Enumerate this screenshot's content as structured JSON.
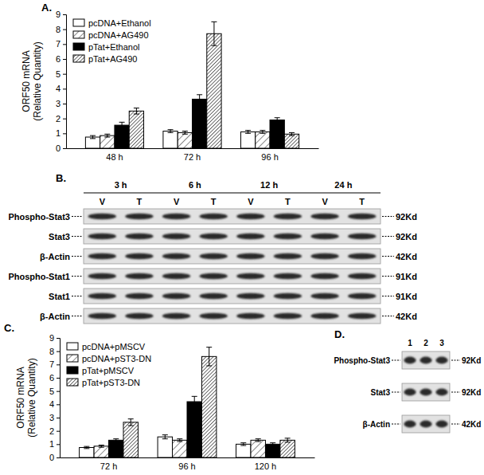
{
  "chart_data": [
    {
      "type": "bar",
      "title": "A.",
      "y_label": [
        "ORF50 mRNA",
        "(Relative Quantity)"
      ],
      "categories": [
        "48 h",
        "72 h",
        "96 h"
      ],
      "ylim": [
        0,
        9
      ],
      "yticks": [
        0,
        1,
        2,
        3,
        4,
        5,
        6,
        7,
        8,
        9
      ],
      "legend": "upper left",
      "series": [
        {
          "name": "pcDNA+Ethanol",
          "color": "#ffffff",
          "values": [
            0.75,
            1.15,
            1.1
          ],
          "errors": [
            0.1,
            0.1,
            0.1
          ]
        },
        {
          "name": "pcDNA+AG490",
          "color": "#555555",
          "line_style": "hatched",
          "values": [
            0.85,
            1.05,
            1.1
          ],
          "errors": [
            0.1,
            0.1,
            0.1
          ]
        },
        {
          "name": "pTat+Ethanol",
          "color": "#000000",
          "values": [
            1.55,
            3.3,
            1.9
          ],
          "errors": [
            0.2,
            0.3,
            0.15
          ]
        },
        {
          "name": "pTat+AG490",
          "color": "#333333",
          "line_style": "hatched",
          "values": [
            2.5,
            7.7,
            0.95
          ],
          "errors": [
            0.2,
            0.8,
            0.1
          ]
        }
      ]
    },
    {
      "type": "bar",
      "title": "C.",
      "y_label": [
        "ORF50 mRNA",
        "(Relative Quantity)"
      ],
      "categories": [
        "72 h",
        "96 h",
        "120 h"
      ],
      "ylim": [
        0,
        9
      ],
      "yticks": [
        0,
        1,
        2,
        3,
        4,
        5,
        6,
        7,
        8,
        9
      ],
      "legend": "upper left",
      "series": [
        {
          "name": "pcDNA+pMSCV",
          "color": "#ffffff",
          "values": [
            0.75,
            1.55,
            1.0
          ],
          "errors": [
            0.08,
            0.15,
            0.1
          ]
        },
        {
          "name": "pcDNA+pST3-DN",
          "color": "#555555",
          "line_style": "hatched",
          "values": [
            0.85,
            1.3,
            1.3
          ],
          "errors": [
            0.08,
            0.1,
            0.1
          ]
        },
        {
          "name": "pTat+pMSCV",
          "color": "#000000",
          "values": [
            1.3,
            4.2,
            1.0
          ],
          "errors": [
            0.1,
            0.4,
            0.1
          ]
        },
        {
          "name": "pTat+pST3-DN",
          "color": "#333333",
          "line_style": "hatched",
          "values": [
            2.65,
            7.6,
            1.3
          ],
          "errors": [
            0.25,
            0.7,
            0.15
          ]
        }
      ]
    }
  ],
  "blots": [
    {
      "title": "B.",
      "groups": [
        "3 h",
        "6 h",
        "12 h",
        "24 h"
      ],
      "lanes": [
        "V",
        "T",
        "V",
        "T",
        "V",
        "T",
        "V",
        "T"
      ],
      "rows": [
        {
          "label": "Phospho-Stat3",
          "size": "92Kd"
        },
        {
          "label": "Stat3",
          "size": "92Kd"
        },
        {
          "label": "β-Actin",
          "size": "42Kd"
        },
        {
          "label": "Phospho-Stat1",
          "size": "91Kd"
        },
        {
          "label": "Stat1",
          "size": "91Kd"
        },
        {
          "label": "β-Actin",
          "size": "42Kd"
        }
      ]
    },
    {
      "title": "D.",
      "lanes": [
        "1",
        "2",
        "3"
      ],
      "rows": [
        {
          "label": "Phospho-Stat3",
          "size": "92Kd"
        },
        {
          "label": "Stat3",
          "size": "92Kd"
        },
        {
          "label": "β-Actin",
          "size": "42Kd"
        }
      ]
    }
  ]
}
